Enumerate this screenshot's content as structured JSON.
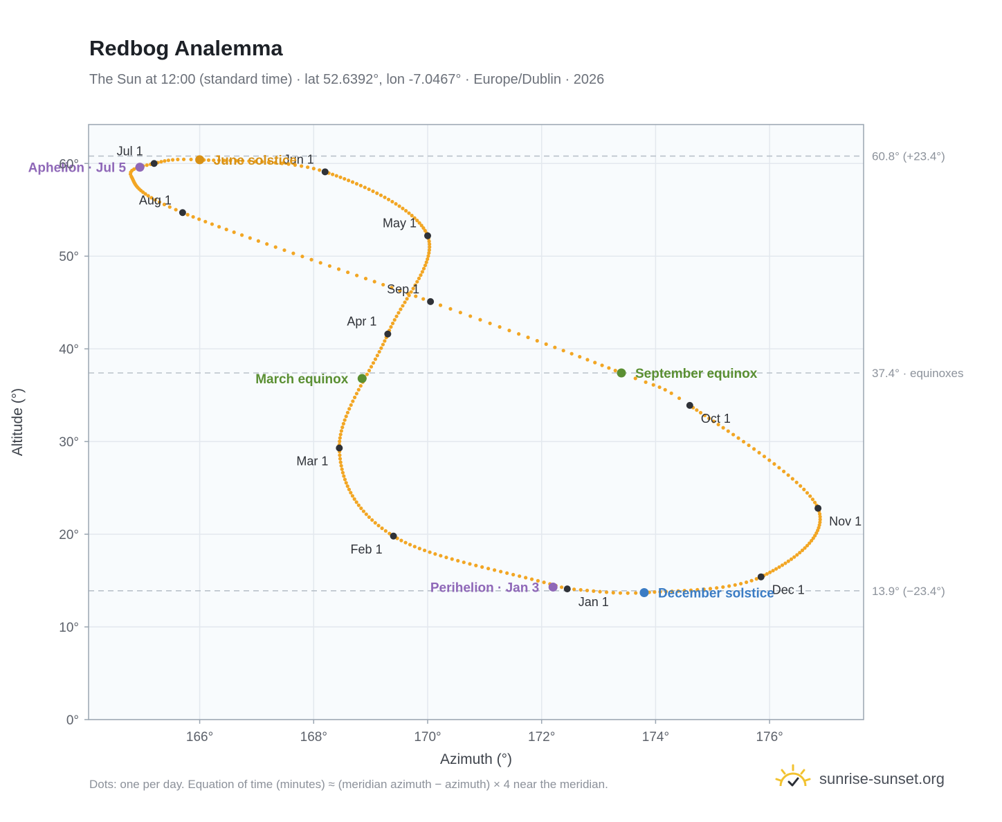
{
  "header": {
    "title": "Redbog Analemma",
    "subtitle": "The Sun at 12:00 (standard time) · lat 52.6392°, lon -7.0467° · Europe/Dublin · 2026"
  },
  "footer": {
    "note": "Dots: one per day. Equation of time (minutes) ≈ (meridian azimuth − azimuth) × 4 near the meridian.",
    "brand": "sunrise-sunset.org"
  },
  "colors": {
    "path": "#f2a624",
    "month_marker": "#2f3238",
    "equinox": "#5a8f32",
    "june_solstice": "#d89115",
    "december_solstice": "#3b7cc4",
    "apsis": "#8f68b8",
    "plot_bg": "#f8fbfd",
    "grid": "#e3e8ee",
    "reference_line": "#b9c1ca",
    "brand_icon": "#f2c230"
  },
  "chart_data": {
    "type": "scatter",
    "xlabel": "Azimuth (°)",
    "ylabel": "Altitude (°)",
    "xlim": [
      164.05,
      177.65
    ],
    "ylim": [
      0,
      64.2
    ],
    "x_ticks": [
      166,
      168,
      170,
      172,
      174,
      176
    ],
    "x_tick_labels": [
      "166°",
      "168°",
      "170°",
      "172°",
      "174°",
      "176°"
    ],
    "y_ticks": [
      0,
      10,
      20,
      30,
      40,
      50,
      60
    ],
    "y_tick_labels": [
      "0°",
      "10°",
      "20°",
      "30°",
      "40°",
      "50°",
      "60°"
    ],
    "grid": true,
    "reference_lines": [
      {
        "y": 60.8,
        "label": "60.8° (+23.4°)"
      },
      {
        "y": 37.4,
        "label": "37.4° · equinoxes"
      },
      {
        "y": 13.9,
        "label": "13.9° (−23.4°)"
      }
    ],
    "month_markers": [
      {
        "label": "Jan 1",
        "x": 172.45,
        "y": 14.1,
        "pos": "br"
      },
      {
        "label": "Feb 1",
        "x": 169.4,
        "y": 19.8,
        "pos": "bl"
      },
      {
        "label": "Mar 1",
        "x": 168.45,
        "y": 29.3,
        "pos": "bl"
      },
      {
        "label": "Apr 1",
        "x": 169.3,
        "y": 41.6,
        "pos": "tl"
      },
      {
        "label": "May 1",
        "x": 170.0,
        "y": 52.2,
        "pos": "tl"
      },
      {
        "label": "Jun 1",
        "x": 168.2,
        "y": 59.1,
        "pos": "tl"
      },
      {
        "label": "Jul 1",
        "x": 165.2,
        "y": 60.0,
        "pos": "tl"
      },
      {
        "label": "Aug 1",
        "x": 165.7,
        "y": 54.7,
        "pos": "tl"
      },
      {
        "label": "Sep 1",
        "x": 170.05,
        "y": 45.1,
        "pos": "tl"
      },
      {
        "label": "Oct 1",
        "x": 174.6,
        "y": 33.9,
        "pos": "br"
      },
      {
        "label": "Nov 1",
        "x": 176.85,
        "y": 22.8,
        "pos": "br"
      },
      {
        "label": "Dec 1",
        "x": 175.85,
        "y": 15.4,
        "pos": "br"
      }
    ],
    "events": [
      {
        "label": "June solstice",
        "x": 166.0,
        "y": 60.4,
        "color_key": "june_solstice",
        "side": "right"
      },
      {
        "label": "December solstice",
        "x": 173.8,
        "y": 13.7,
        "color_key": "december_solstice",
        "side": "right"
      },
      {
        "label": "March equinox",
        "x": 168.85,
        "y": 36.8,
        "color_key": "equinox",
        "side": "left"
      },
      {
        "label": "September equinox",
        "x": 173.4,
        "y": 37.4,
        "color_key": "equinox",
        "side": "right"
      },
      {
        "label": "Aphelion · Jul 5",
        "x": 164.95,
        "y": 59.6,
        "color_key": "apsis",
        "side": "left"
      },
      {
        "label": "Perihelion · Jan 3",
        "x": 172.2,
        "y": 14.3,
        "color_key": "apsis",
        "side": "left"
      }
    ],
    "path_keypoints": [
      {
        "doy": 0,
        "x": 172.45,
        "y": 14.1
      },
      {
        "doy": 31,
        "x": 169.4,
        "y": 19.8
      },
      {
        "doy": 59,
        "x": 168.45,
        "y": 29.3
      },
      {
        "doy": 90,
        "x": 169.3,
        "y": 41.6
      },
      {
        "doy": 120,
        "x": 170.0,
        "y": 52.2
      },
      {
        "doy": 151,
        "x": 168.2,
        "y": 59.1
      },
      {
        "doy": 172,
        "x": 166.0,
        "y": 60.4
      },
      {
        "doy": 181,
        "x": 165.2,
        "y": 60.0
      },
      {
        "doy": 191,
        "x": 164.8,
        "y": 58.6
      },
      {
        "doy": 212,
        "x": 165.7,
        "y": 54.7
      },
      {
        "doy": 243,
        "x": 170.05,
        "y": 45.1
      },
      {
        "doy": 265,
        "x": 173.4,
        "y": 37.4
      },
      {
        "doy": 273,
        "x": 174.6,
        "y": 33.9
      },
      {
        "doy": 304,
        "x": 176.85,
        "y": 22.8
      },
      {
        "doy": 334,
        "x": 175.85,
        "y": 15.4
      },
      {
        "doy": 354,
        "x": 173.8,
        "y": 13.7
      },
      {
        "doy": 365,
        "x": 172.45,
        "y": 14.1
      }
    ]
  }
}
